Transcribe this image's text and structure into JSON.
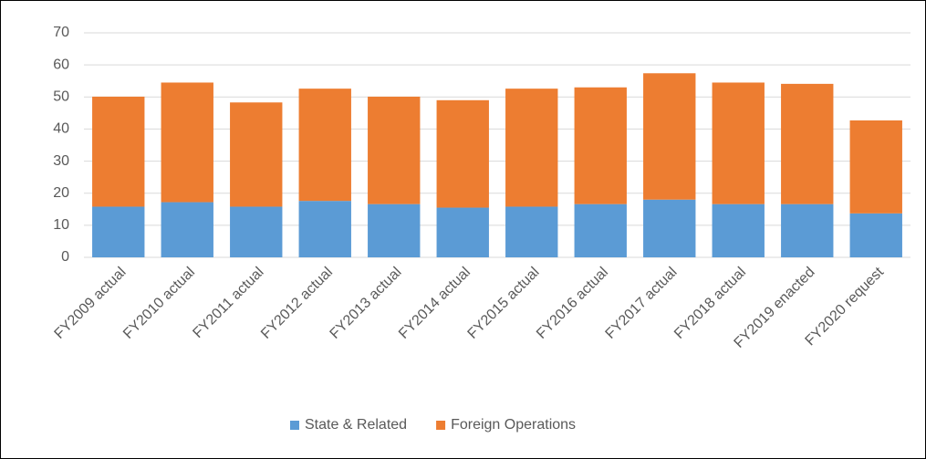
{
  "chart_data": {
    "type": "stacked_bar",
    "categories": [
      "FY2009 actual",
      "FY2010 actual",
      "FY2011 actual",
      "FY2012 actual",
      "FY2013 actual",
      "FY2014 actual",
      "FY2015 actual",
      "FY2016 actual",
      "FY2017 actual",
      "FY2018 actual",
      "FY2019 enacted",
      "FY2020  request"
    ],
    "series": [
      {
        "name": "State & Related",
        "color": "#5b9bd5",
        "values": [
          15.8,
          17.2,
          15.8,
          17.6,
          16.6,
          15.5,
          15.8,
          16.6,
          18.0,
          16.6,
          16.6,
          13.7
        ]
      },
      {
        "name": "Foreign Operations",
        "color": "#ed7d31",
        "values": [
          34.3,
          37.3,
          32.5,
          35.0,
          33.5,
          33.5,
          36.8,
          36.4,
          39.4,
          37.9,
          37.5,
          29.0
        ]
      }
    ],
    "ylim": [
      0,
      70
    ],
    "yticks": [
      0,
      10,
      20,
      30,
      40,
      50,
      60,
      70
    ],
    "grid": true,
    "legend": "bottom"
  }
}
